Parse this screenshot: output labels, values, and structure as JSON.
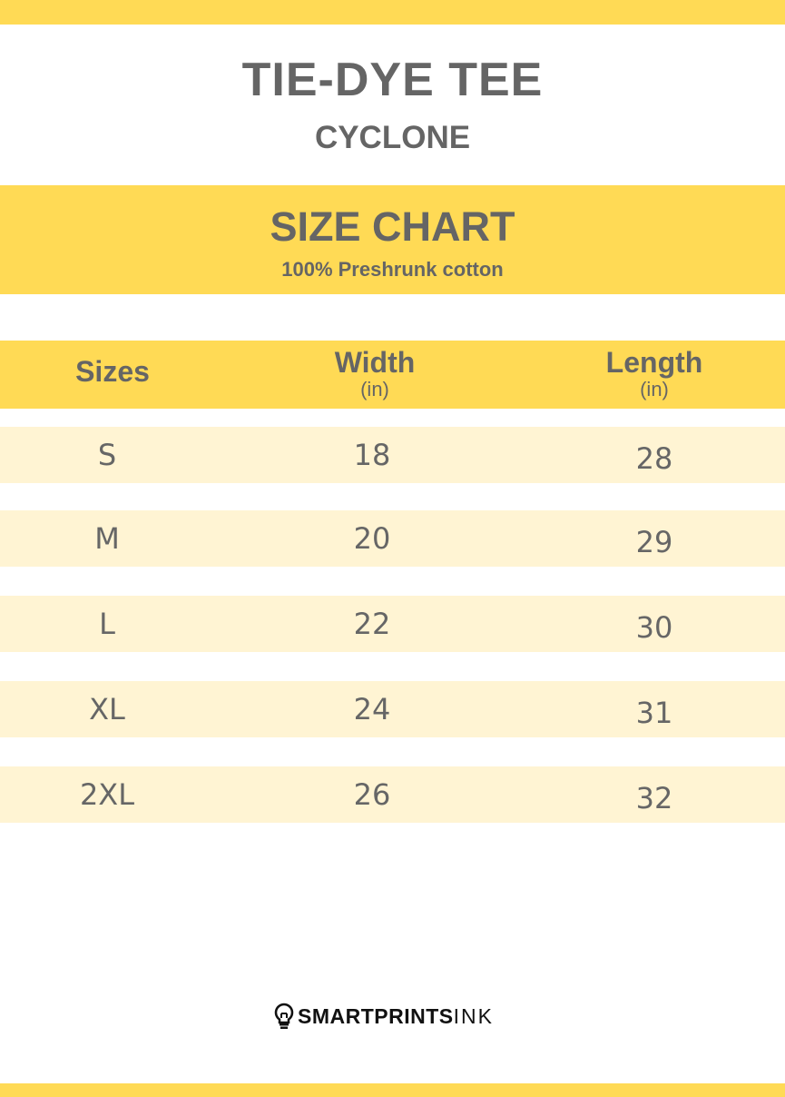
{
  "header": {
    "title": "TIE-DYE TEE",
    "subtitle": "CYCLONE"
  },
  "banner": {
    "title": "SIZE CHART",
    "subtitle": "100% Preshrunk cotton"
  },
  "table": {
    "columns": [
      {
        "label": "Sizes",
        "unit": ""
      },
      {
        "label": "Width",
        "unit": "(in)"
      },
      {
        "label": "Length",
        "unit": "(in)"
      }
    ],
    "rows": [
      [
        "S",
        "18",
        "28"
      ],
      [
        "M",
        "20",
        "29"
      ],
      [
        "L",
        "22",
        "30"
      ],
      [
        "XL",
        "24",
        "31"
      ],
      [
        "2XL",
        "26",
        "32"
      ]
    ]
  },
  "logo": {
    "bold": "SMARTPRINTS",
    "light": "INK",
    "icon": "lightbulb-icon"
  },
  "colors": {
    "accent": "#FFDA55",
    "row": "#FFF4D3",
    "text": "#656565"
  }
}
